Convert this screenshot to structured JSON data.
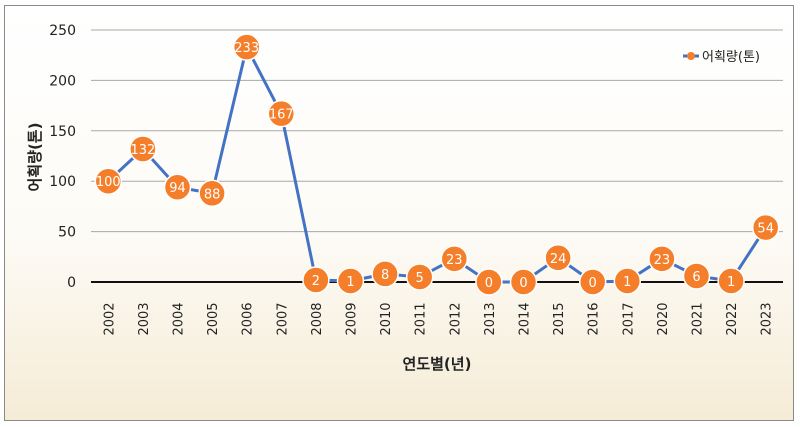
{
  "chart_data": {
    "type": "line",
    "categories": [
      "2002",
      "2003",
      "2004",
      "2005",
      "2006",
      "2007",
      "2008",
      "2009",
      "2010",
      "2011",
      "2012",
      "2013",
      "2014",
      "2015",
      "2016",
      "2017",
      "2020",
      "2021",
      "2022",
      "2023"
    ],
    "series": [
      {
        "name": "어획량(톤)",
        "values": [
          100,
          132,
          94,
          88,
          233,
          167,
          2,
          1,
          8,
          5,
          23,
          0,
          0,
          24,
          0,
          1,
          23,
          6,
          1,
          54
        ],
        "color": "#4472c4",
        "marker_color": "#f47e29"
      }
    ],
    "title": "",
    "xlabel": "연도별(년)",
    "ylabel": "어획량(톤)",
    "ylim": [
      0,
      250
    ],
    "yticks": [
      0,
      50,
      100,
      150,
      200,
      250
    ],
    "grid": true,
    "legend_position": "top-right",
    "data_labels": true
  }
}
